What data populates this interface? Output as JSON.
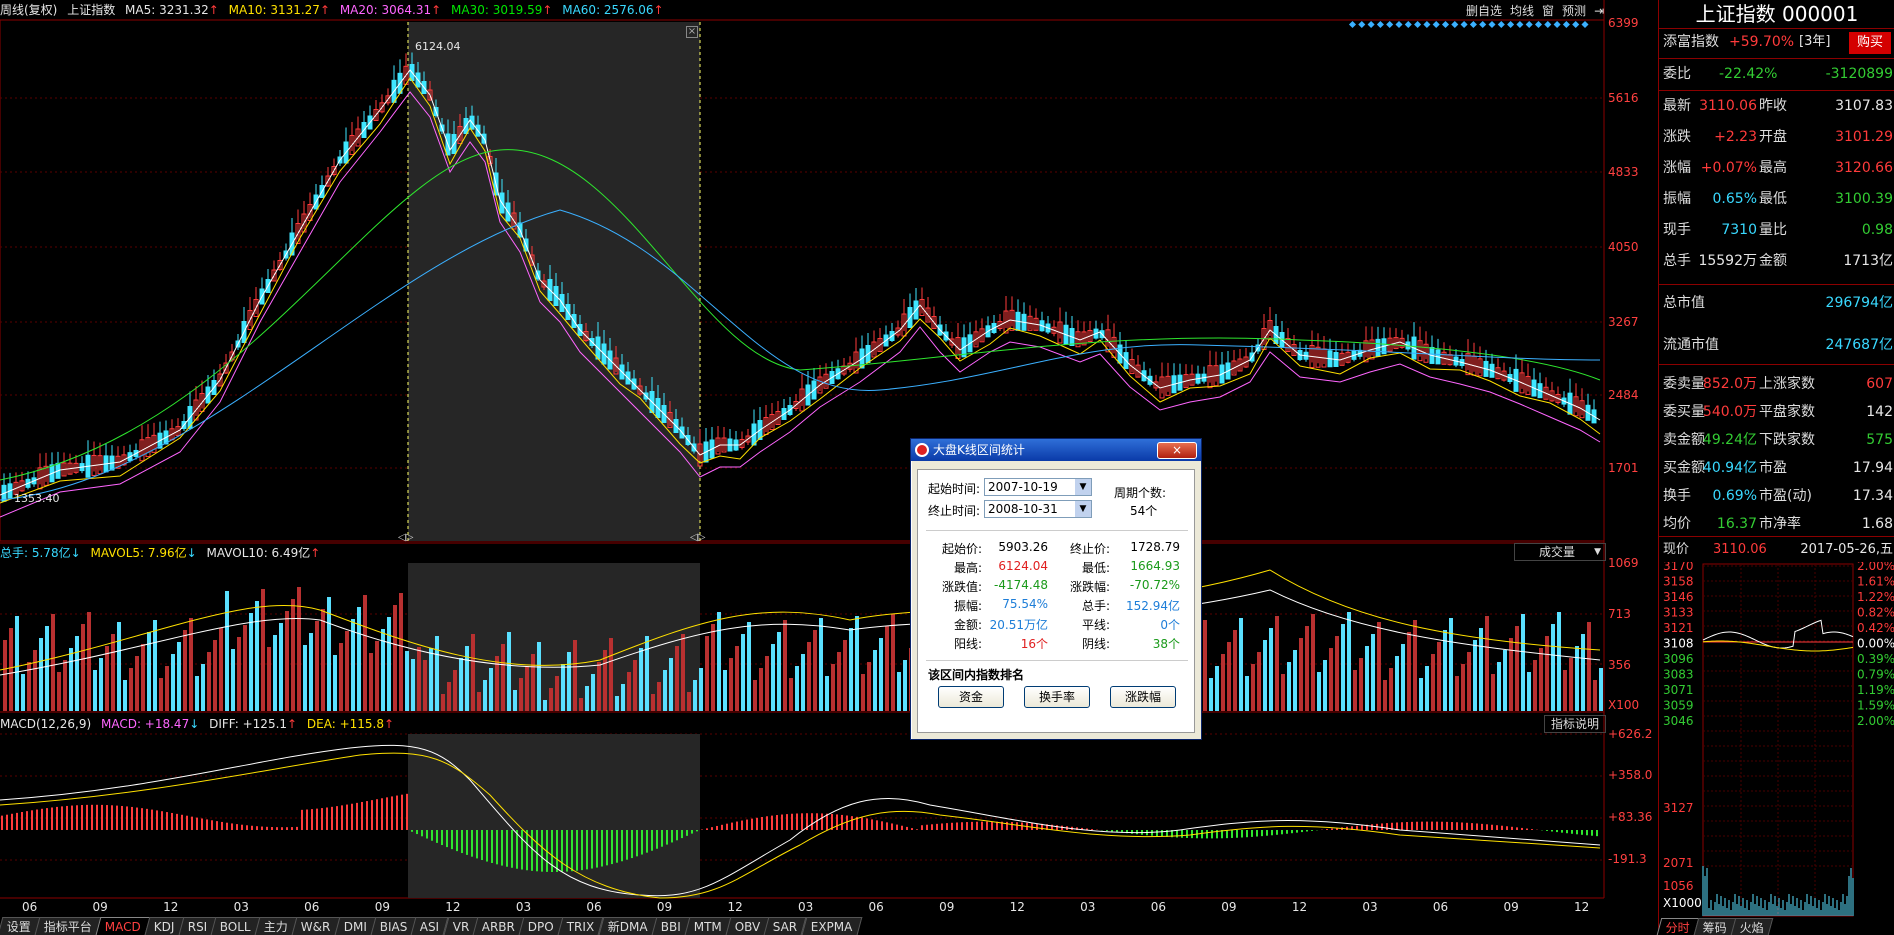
{
  "main_legend": {
    "label": "周线(复权)",
    "index_name": "上证指数",
    "ma5": "MA5: 3231.32",
    "ma10": "MA10: 3131.27",
    "ma20": "MA20: 3064.31",
    "ma30": "MA30: 3019.59",
    "ma60": "MA60: 2576.06"
  },
  "top_buttons": [
    "删自选",
    "均线",
    "窗",
    "预测"
  ],
  "price_axis": [
    "6399",
    "5616",
    "4833",
    "4050",
    "3267",
    "2484",
    "1701"
  ],
  "annotations": {
    "high_label": "6124.04",
    "low_label": "1353.40"
  },
  "volume_legend": {
    "total": "总手: 5.78亿",
    "mavol5": "MAVOL5: 7.96亿",
    "mavol10": "MAVOL10: 6.49亿",
    "dropdown": "成交量"
  },
  "volume_axis": [
    "1069",
    "713",
    "356",
    "X100"
  ],
  "macd_legend": {
    "label": "MACD(12,26,9)",
    "macd": "MACD: +18.47",
    "diff": "DIFF: +125.1",
    "dea": "DEA: +115.8",
    "help": "指标说明"
  },
  "macd_axis": [
    "+626.2",
    "+358.0",
    "+83.36",
    "-191.3"
  ],
  "time_axis": [
    "06",
    "09",
    "12",
    "03",
    "06",
    "09",
    "12",
    "03",
    "06",
    "09",
    "12",
    "03",
    "06",
    "09",
    "12",
    "03",
    "06",
    "09",
    "12",
    "03",
    "06",
    "09",
    "12"
  ],
  "bottom_tabs": [
    "设置",
    "指标平台",
    "MACD",
    "KDJ",
    "RSI",
    "BOLL",
    "主力",
    "W&R",
    "DMI",
    "BIAS",
    "ASI",
    "VR",
    "ARBR",
    "DPO",
    "TRIX",
    "新DMA",
    "BBI",
    "MTM",
    "OBV",
    "SAR",
    "EXPMA"
  ],
  "active_tab": "MACD",
  "right_panel": {
    "title": "上证指数 000001",
    "tianfu": {
      "label": "添富指数",
      "value": "+59.70%",
      "period": "[3年]",
      "buy": "购买"
    },
    "weibi": {
      "label": "委比",
      "v1": "-22.42%",
      "v2": "-3120899"
    },
    "rows": [
      {
        "l1": "最新",
        "v1": "3110.06",
        "l2": "昨收",
        "v2": "3107.83"
      },
      {
        "l1": "涨跌",
        "v1": "+2.23",
        "l2": "开盘",
        "v2": "3101.29"
      },
      {
        "l1": "涨幅",
        "v1": "+0.07%",
        "l2": "最高",
        "v2": "3120.66"
      },
      {
        "l1": "振幅",
        "v1": "0.65%",
        "l2": "最低",
        "v2": "3100.39"
      },
      {
        "l1": "现手",
        "v1": "7310",
        "l2": "量比",
        "v2": "0.98"
      },
      {
        "l1": "总手",
        "v1": "15592万",
        "l2": "金额",
        "v2": "1713亿"
      }
    ],
    "total_mv": {
      "label": "总市值",
      "value": "296794亿"
    },
    "float_mv": {
      "label": "流通市值",
      "value": "247687亿"
    },
    "rows2": [
      {
        "l1": "委卖量",
        "v1": "852.0万",
        "l2": "上涨家数",
        "v2": "607"
      },
      {
        "l1": "委买量",
        "v1": "540.0万",
        "l2": "平盘家数",
        "v2": "142"
      },
      {
        "l1": "卖金额",
        "v1": "49.24亿",
        "l2": "下跌家数",
        "v2": "575"
      },
      {
        "l1": "买金额",
        "v1": "40.94亿",
        "l2": "市盈",
        "v2": "17.94"
      },
      {
        "l1": "换手",
        "v1": "0.69%",
        "l2": "市盈(动)",
        "v2": "17.34"
      },
      {
        "l1": "均价",
        "v1": "16.37",
        "l2": "市净率",
        "v2": "1.68"
      }
    ],
    "intraday": {
      "label": "现价",
      "price": "3110.06",
      "date": "2017-05-26,五"
    },
    "intraday_left_axis": [
      "3170",
      "3158",
      "3146",
      "3133",
      "3121",
      "3108",
      "3096",
      "3083",
      "3071",
      "3059",
      "3046",
      "3127",
      "2071",
      "1056",
      "X1000"
    ],
    "intraday_right_axis": [
      "2.00%",
      "1.61%",
      "1.22%",
      "0.82%",
      "0.42%",
      "0.00%",
      "0.39%",
      "0.79%",
      "1.19%",
      "1.59%",
      "2.00%"
    ],
    "bottom_tabs": [
      "分时",
      "筹码",
      "火焰"
    ]
  },
  "dialog": {
    "title": "大盘K线区间统计",
    "start_label": "起始时间:",
    "start_value": "2007-10-19",
    "end_label": "终止时间:",
    "end_value": "2008-10-31",
    "period_label": "周期个数:",
    "period_value": "54个",
    "stats": [
      {
        "l1": "起始价:",
        "v1": "5903.26",
        "c1": "black",
        "l2": "终止价:",
        "v2": "1728.79",
        "c2": "black"
      },
      {
        "l1": "最高:",
        "v1": "6124.04",
        "c1": "red",
        "l2": "最低:",
        "v2": "1664.93",
        "c2": "green"
      },
      {
        "l1": "涨跌值:",
        "v1": "-4174.48",
        "c1": "green",
        "l2": "涨跌幅:",
        "v2": "-70.72%",
        "c2": "green"
      },
      {
        "l1": "振幅:",
        "v1": "75.54%",
        "c1": "blue",
        "l2": "总手:",
        "v2": "152.94亿",
        "c2": "blue"
      },
      {
        "l1": "金额:",
        "v1": "20.51万亿",
        "c1": "blue",
        "l2": "平线:",
        "v2": "0个",
        "c2": "blue"
      },
      {
        "l1": "阳线:",
        "v1": "16个",
        "c1": "red",
        "l2": "阴线:",
        "v2": "38个",
        "c2": "green"
      }
    ],
    "rank_title": "该区间内指数排名",
    "buttons": [
      "资金",
      "换手率",
      "涨跌幅"
    ],
    "close": "×"
  }
}
